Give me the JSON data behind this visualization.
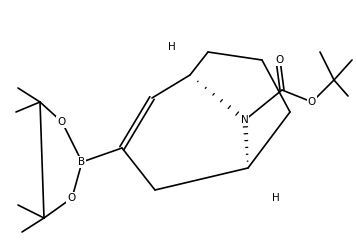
{
  "bg_color": "#ffffff",
  "lw": 1.2,
  "fs": 7.5,
  "dpi": 100,
  "figw": 3.56,
  "figh": 2.4,
  "xlim": [
    0,
    356
  ],
  "ylim": [
    0,
    240
  ]
}
